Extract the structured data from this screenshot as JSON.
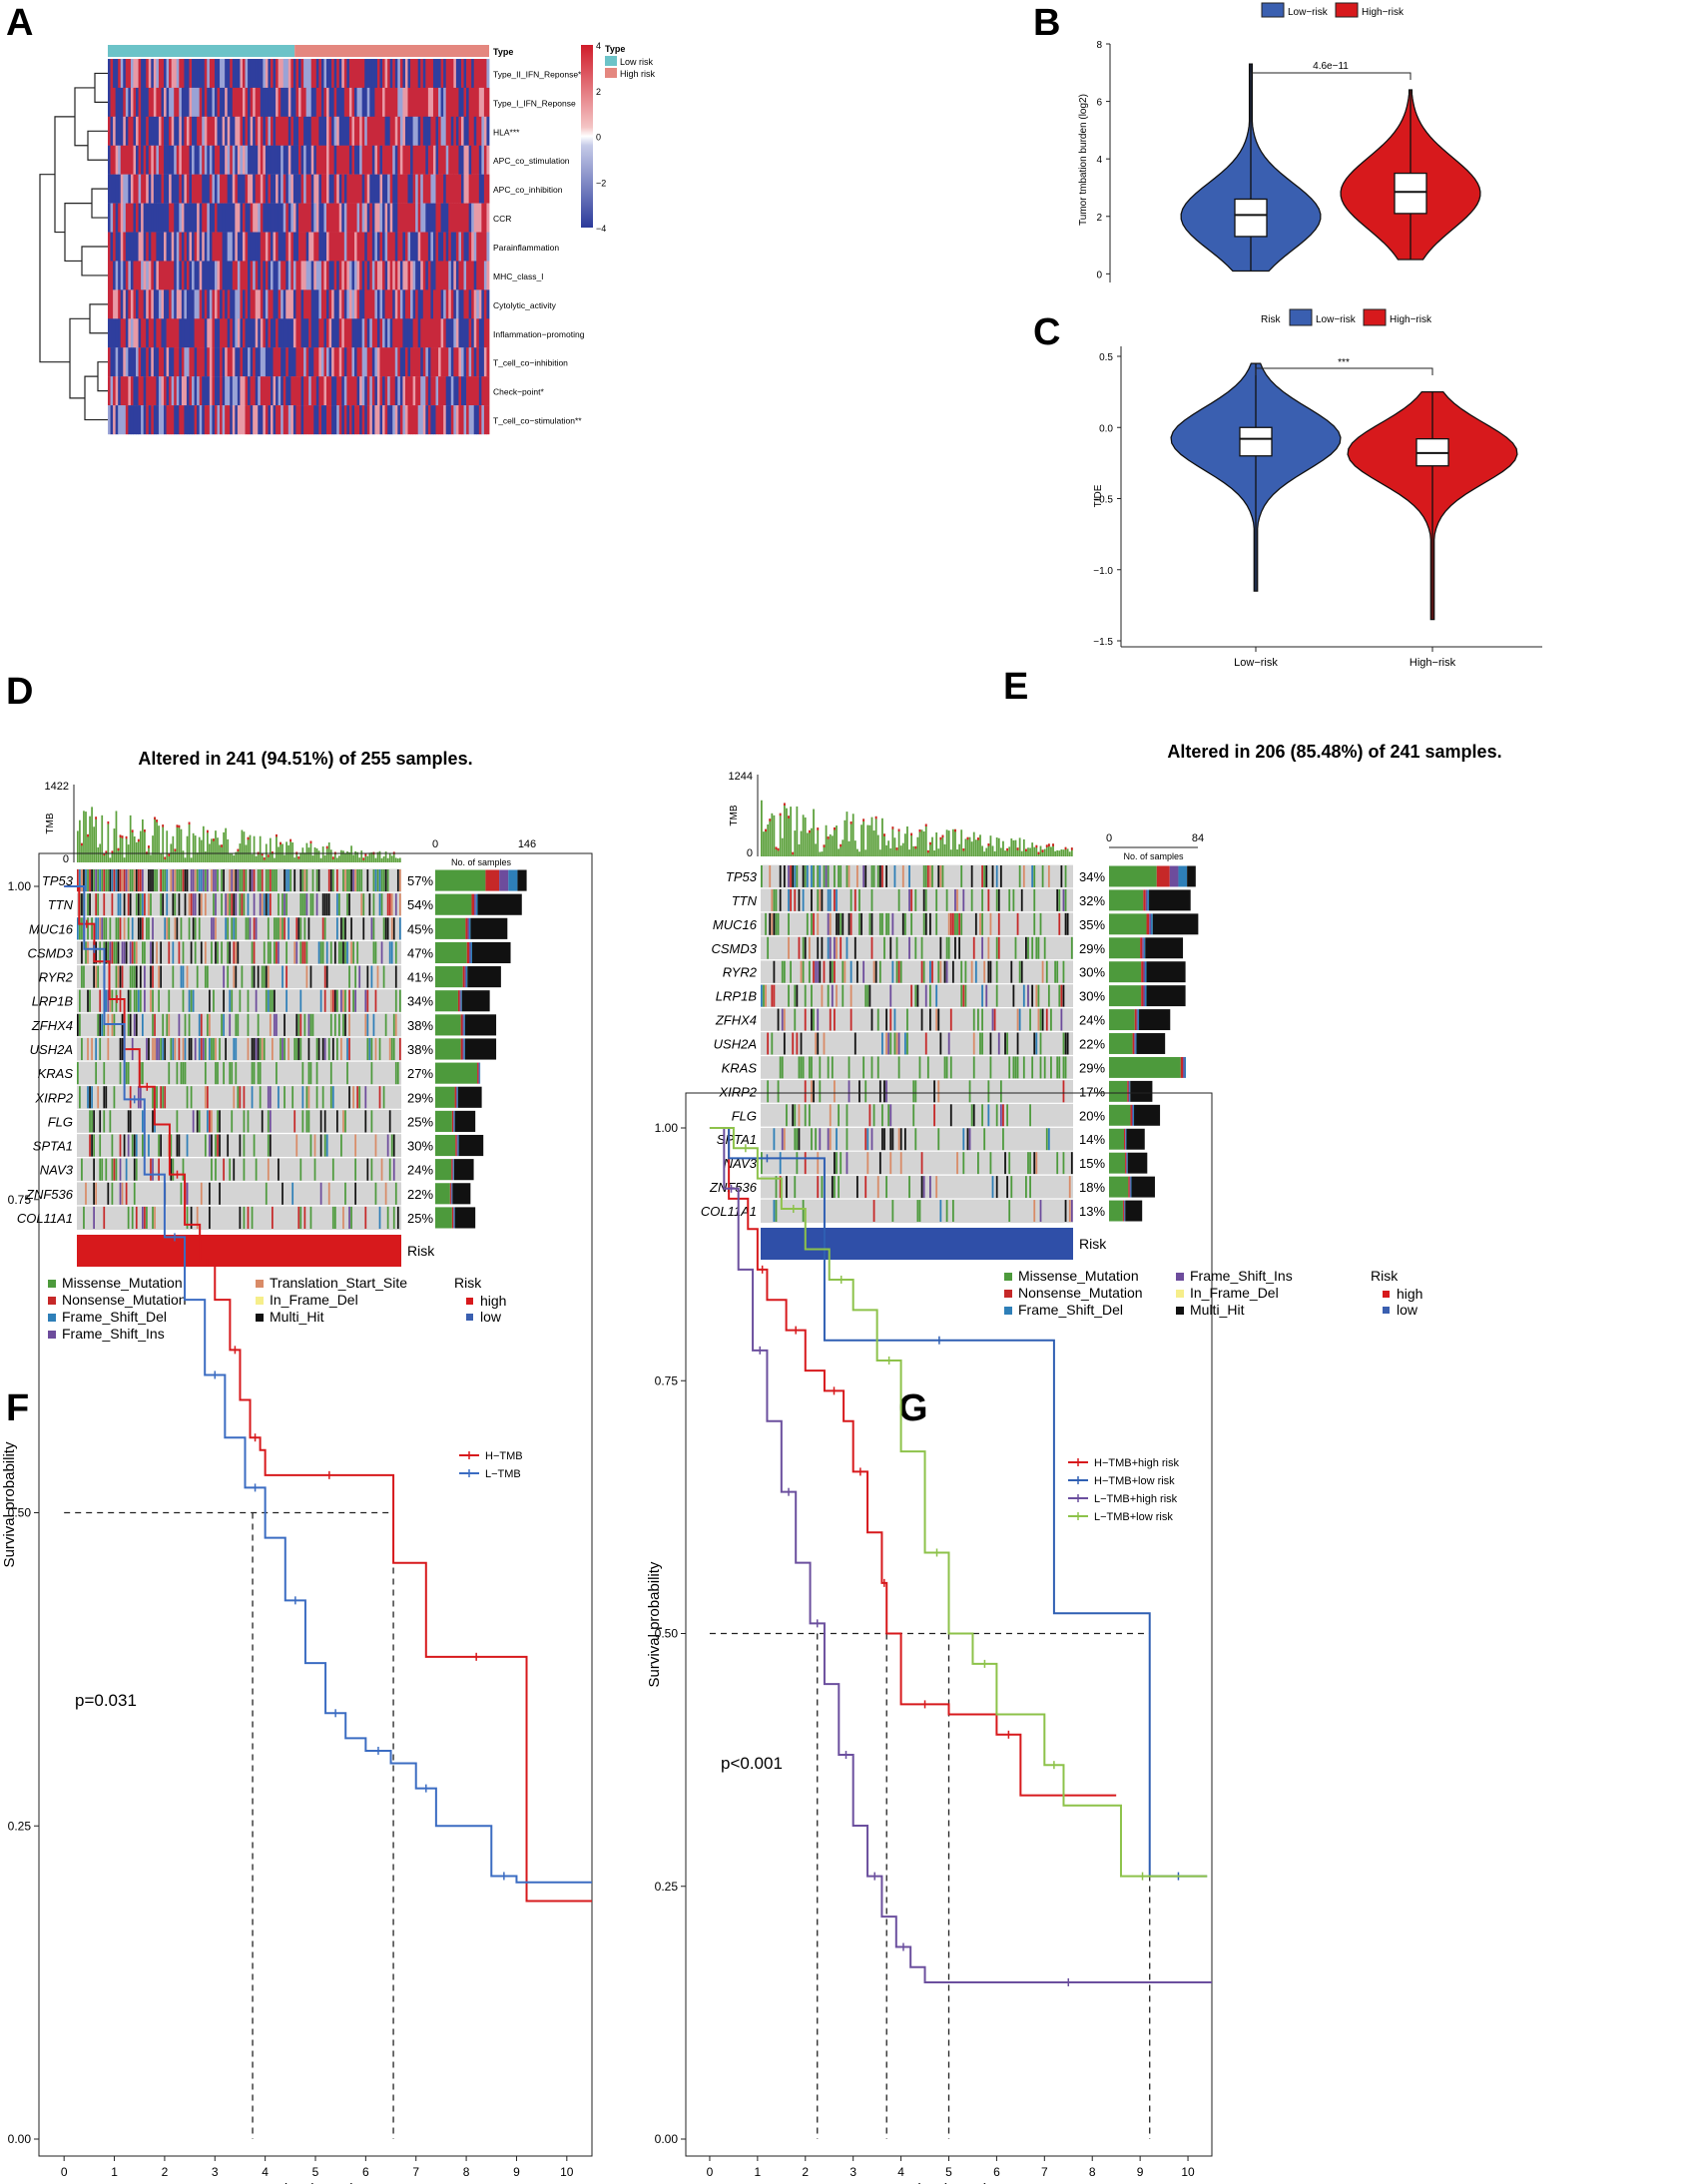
{
  "panels": {
    "A": "A",
    "B": "B",
    "C": "C",
    "D": "D",
    "E": "E",
    "F": "F",
    "G": "G"
  },
  "colors": {
    "low": "#3a5fb0",
    "high": "#d7191c",
    "lowType": "#6cc3c8",
    "highType": "#e4877f",
    "missense": "#4d9a3c",
    "nonsense": "#c62828",
    "frameDel": "#2e7fb8",
    "frameIns": "#6d4c9c",
    "tss": "#d98b67",
    "inframe": "#f6ee8a",
    "multi": "#111111",
    "tmbbar": "#5da13d",
    "cellbg": "#d4d4d4",
    "km_h": "#d7191c",
    "km_l": "#3b6cc2",
    "g_h_high": "#d7191c",
    "g_h_low": "#2f5fb3",
    "g_l_high": "#6b4f9e",
    "g_l_low": "#8dc24a"
  },
  "chart_data": [
    {
      "panel": "A",
      "type": "heatmap",
      "annotation_label": "Type",
      "legend_title": "Type",
      "legend_items": [
        "Low risk",
        "High risk"
      ],
      "colorbar_ticks": [
        "4",
        "2",
        "0",
        "−2",
        "−4"
      ],
      "colorbar_values": [
        4,
        2,
        0,
        -2,
        -4
      ],
      "rows": [
        "Type_II_IFN_Reponse***",
        "Type_I_IFN_Reponse",
        "HLA***",
        "APC_co_stimulation",
        "APC_co_inhibition",
        "CCR",
        "Parainflammation",
        "MHC_class_I",
        "Cytolytic_activity",
        "Inflammation−promoting",
        "T_cell_co−inhibition",
        "Check−point*",
        "T_cell_co−stimulation**"
      ],
      "groups": {
        "low_fraction": 0.49,
        "high_fraction": 0.51
      }
    },
    {
      "panel": "B",
      "type": "violin",
      "legend_items": [
        "Low−risk",
        "High−risk"
      ],
      "ylabel": "Tumor tmbation burden (log2)",
      "yticks": [
        "0",
        "2",
        "4",
        "6",
        "8"
      ],
      "ylim": [
        -0.3,
        8
      ],
      "pvalue": "4.6e−11",
      "groups": [
        {
          "name": "Low−risk",
          "median": 2.05,
          "q1": 1.3,
          "q3": 2.6,
          "min": 0.1,
          "max": 7.3,
          "center": 2.0
        },
        {
          "name": "High−risk",
          "median": 2.85,
          "q1": 2.1,
          "q3": 3.5,
          "min": 0.5,
          "max": 6.4,
          "center": 2.8
        }
      ]
    },
    {
      "panel": "C",
      "type": "violin",
      "legend_title": "Risk",
      "legend_items": [
        "Low−risk",
        "High−risk"
      ],
      "ylabel": "TIDE",
      "xticks": [
        "Low−risk",
        "High−risk"
      ],
      "yticks": [
        "0.5",
        "0.0",
        "−0.5",
        "−1.0",
        "−1.5"
      ],
      "ylim": [
        -1.5,
        0.5
      ],
      "pvalue": "***",
      "groups": [
        {
          "name": "Low−risk",
          "median": -0.08,
          "q1": -0.2,
          "q3": 0.0,
          "min": -1.15,
          "max": 0.45,
          "center": -0.08
        },
        {
          "name": "High−risk",
          "median": -0.18,
          "q1": -0.27,
          "q3": -0.08,
          "min": -1.35,
          "max": 0.25,
          "center": -0.18
        }
      ]
    },
    {
      "panel": "D",
      "type": "oncoplot",
      "title": "Altered in 241 (94.51%) of 255 samples.",
      "tmb_label": "TMB",
      "tmb_max": "1422",
      "tmb_min": "0",
      "bar_axis": [
        "0",
        "146"
      ],
      "bar_axis_label": "No. of samples",
      "bar_max": 146,
      "risk_label": "Risk",
      "genes": [
        "TP53",
        "TTN",
        "MUC16",
        "CSMD3",
        "RYR2",
        "LRP1B",
        "ZFHX4",
        "USH2A",
        "KRAS",
        "XIRP2",
        "FLG",
        "SPTA1",
        "NAV3",
        "ZNF536",
        "COL11A1"
      ],
      "percents": [
        "57%",
        "54%",
        "45%",
        "47%",
        "41%",
        "34%",
        "38%",
        "38%",
        "27%",
        "29%",
        "25%",
        "30%",
        "24%",
        "22%",
        "25%"
      ],
      "legend": [
        "Missense_Mutation",
        "Nonsense_Mutation",
        "Frame_Shift_Del",
        "Frame_Shift_Ins",
        "Translation_Start_Site",
        "In_Frame_Del",
        "Multi_Hit"
      ],
      "risk_legend_title": "Risk",
      "risk_legend": [
        "high",
        "low"
      ]
    },
    {
      "panel": "E",
      "type": "oncoplot",
      "title": "Altered in 206 (85.48%) of 241 samples.",
      "tmb_label": "TMB",
      "tmb_max": "1244",
      "tmb_min": "0",
      "bar_axis": [
        "0",
        "84"
      ],
      "bar_axis_label": "No. of samples",
      "bar_max": 84,
      "risk_label": "Risk",
      "genes": [
        "TP53",
        "TTN",
        "MUC16",
        "CSMD3",
        "RYR2",
        "LRP1B",
        "ZFHX4",
        "USH2A",
        "KRAS",
        "XIRP2",
        "FLG",
        "SPTA1",
        "NAV3",
        "ZNF536",
        "COL11A1"
      ],
      "percents": [
        "34%",
        "32%",
        "35%",
        "29%",
        "30%",
        "30%",
        "24%",
        "22%",
        "29%",
        "17%",
        "20%",
        "14%",
        "15%",
        "18%",
        "13%"
      ],
      "legend": [
        "Missense_Mutation",
        "Nonsense_Mutation",
        "Frame_Shift_Del",
        "Frame_Shift_Ins",
        "In_Frame_Del",
        "Multi_Hit"
      ],
      "risk_legend_title": "Risk",
      "risk_legend": [
        "high",
        "low"
      ]
    },
    {
      "panel": "F",
      "type": "line",
      "xlabel": "Time(years)",
      "ylabel": "Survival probability",
      "xticks": [
        "0",
        "1",
        "2",
        "3",
        "4",
        "5",
        "6",
        "7",
        "8",
        "9",
        "10"
      ],
      "yticks": [
        "0.00",
        "0.25",
        "0.50",
        "0.75",
        "1.00"
      ],
      "xlim": [
        -0.5,
        10.5
      ],
      "ylim": [
        0,
        1
      ],
      "pvalue": "p=0.031",
      "medians": [
        3.75,
        6.55
      ],
      "series": [
        {
          "name": "H−TMB",
          "colorKey": "km_h",
          "x": [
            0,
            0.3,
            0.6,
            0.9,
            1.2,
            1.5,
            1.8,
            2.1,
            2.4,
            2.7,
            3.0,
            3.3,
            3.5,
            3.7,
            3.9,
            4.0,
            6.55,
            7.2,
            9.2,
            10.5
          ],
          "y": [
            1,
            0.97,
            0.94,
            0.91,
            0.87,
            0.84,
            0.81,
            0.77,
            0.73,
            0.7,
            0.67,
            0.63,
            0.59,
            0.56,
            0.55,
            0.53,
            0.46,
            0.385,
            0.19,
            0.19
          ]
        },
        {
          "name": "L−TMB",
          "colorKey": "km_l",
          "x": [
            0,
            0.4,
            0.8,
            1.2,
            1.6,
            2.0,
            2.4,
            2.8,
            3.2,
            3.6,
            4.0,
            4.4,
            4.8,
            5.2,
            5.6,
            6.0,
            6.5,
            7.0,
            7.4,
            8.5,
            9.0,
            10.5
          ],
          "y": [
            1,
            0.95,
            0.89,
            0.83,
            0.77,
            0.72,
            0.67,
            0.61,
            0.56,
            0.52,
            0.48,
            0.43,
            0.38,
            0.34,
            0.32,
            0.31,
            0.3,
            0.28,
            0.25,
            0.21,
            0.205,
            0.205
          ]
        }
      ]
    },
    {
      "panel": "G",
      "type": "line",
      "xlabel": "Time(years)",
      "ylabel": "Survival probability",
      "xticks": [
        "0",
        "1",
        "2",
        "3",
        "4",
        "5",
        "6",
        "7",
        "8",
        "9",
        "10"
      ],
      "yticks": [
        "0.00",
        "0.25",
        "0.50",
        "0.75",
        "1.00"
      ],
      "xlim": [
        -0.5,
        10.5
      ],
      "ylim": [
        0,
        1
      ],
      "pvalue": "p<0.001",
      "medians": [
        2.25,
        3.7,
        5.0,
        9.2
      ],
      "series": [
        {
          "name": "H−TMB+high risk",
          "colorKey": "g_h_high",
          "x": [
            0,
            0.4,
            0.8,
            1.0,
            1.2,
            1.6,
            2.0,
            2.4,
            2.8,
            3.0,
            3.3,
            3.6,
            3.7,
            4.0,
            5.0,
            6.0,
            6.5,
            8.5
          ],
          "y": [
            1,
            0.93,
            0.9,
            0.86,
            0.83,
            0.8,
            0.76,
            0.74,
            0.71,
            0.66,
            0.6,
            0.55,
            0.5,
            0.43,
            0.42,
            0.4,
            0.34,
            0.34
          ]
        },
        {
          "name": "H−TMB+low risk",
          "colorKey": "g_h_low",
          "x": [
            0,
            0.4,
            2.0,
            2.4,
            7.2,
            9.2,
            10.4
          ],
          "y": [
            1,
            0.97,
            0.97,
            0.79,
            0.52,
            0.26,
            0.26
          ]
        },
        {
          "name": "L−TMB+high risk",
          "colorKey": "g_l_high",
          "x": [
            0,
            0.3,
            0.6,
            0.9,
            1.2,
            1.5,
            1.8,
            2.1,
            2.4,
            2.7,
            3.0,
            3.3,
            3.6,
            3.9,
            4.2,
            4.5,
            10.5
          ],
          "y": [
            1,
            0.94,
            0.86,
            0.78,
            0.71,
            0.64,
            0.57,
            0.51,
            0.45,
            0.38,
            0.31,
            0.26,
            0.22,
            0.19,
            0.17,
            0.155,
            0.155
          ]
        },
        {
          "name": "L−TMB+low risk",
          "colorKey": "g_l_low",
          "x": [
            0,
            0.5,
            1.0,
            1.5,
            2.0,
            2.5,
            3.0,
            3.5,
            4.0,
            4.5,
            5.0,
            5.5,
            6.0,
            7.0,
            7.4,
            8.6,
            9.5,
            10.4
          ],
          "y": [
            1,
            0.98,
            0.95,
            0.92,
            0.88,
            0.85,
            0.82,
            0.77,
            0.68,
            0.58,
            0.5,
            0.47,
            0.42,
            0.37,
            0.33,
            0.26,
            0.26,
            0.26
          ]
        }
      ]
    }
  ]
}
